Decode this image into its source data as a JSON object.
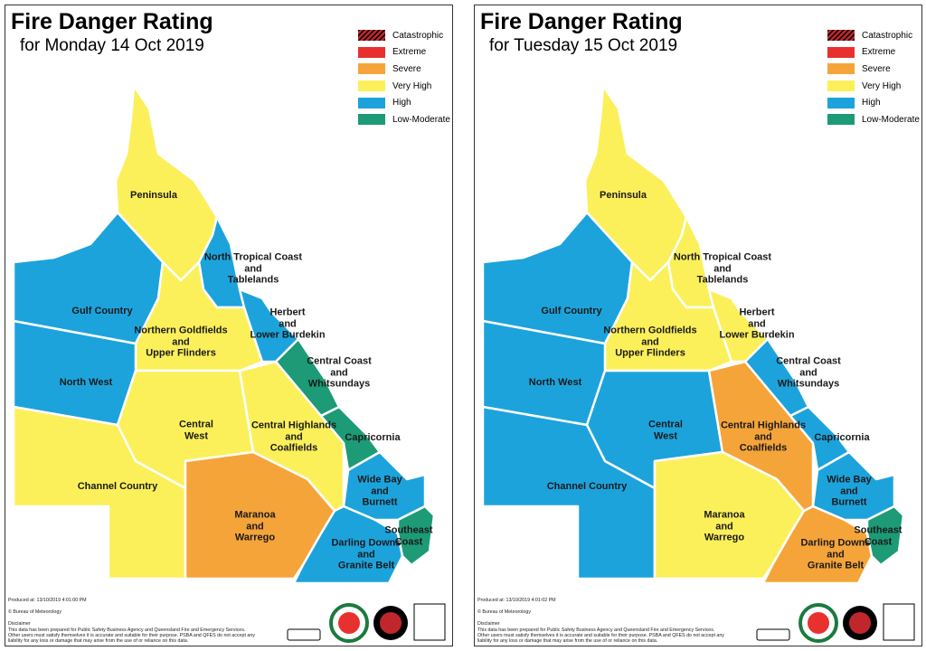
{
  "legend": [
    {
      "label": "Catastrophic",
      "color": "#c0272d"
    },
    {
      "label": "Extreme",
      "color": "#e8312f"
    },
    {
      "label": "Severe",
      "color": "#f5a43a"
    },
    {
      "label": "Very High",
      "color": "#fbf05a"
    },
    {
      "label": "High",
      "color": "#1ca3dc"
    },
    {
      "label": "Low-Moderate",
      "color": "#1c9b76"
    }
  ],
  "footer": {
    "copyright": "© Bureau of Meteorology",
    "disclaimer_title": "Disclaimer",
    "disclaimer": [
      "This data has been prepared for Public Safety Business Agency and Queensland Fire and Emergency Services.",
      "Other users must satisfy themselves it is accurate and suitable for their purpose. PSBA and QFES do not accept any",
      "liability for any loss or damage that may arise from the use of or reliance on this data."
    ]
  },
  "panels": [
    {
      "title": "Fire Danger Rating",
      "subtitle": "for Monday 14 Oct 2019",
      "produced": "Produced at: 13/10/2019 4:01:00 PM",
      "regions": [
        {
          "label": [
            "Peninsula"
          ],
          "rating": "Very High"
        },
        {
          "label": [
            "Gulf Country"
          ],
          "rating": "High"
        },
        {
          "label": [
            "North Tropical Coast",
            "and",
            "Tablelands"
          ],
          "rating": "High"
        },
        {
          "label": [
            "Northern Goldfields",
            "and",
            "Upper Flinders"
          ],
          "rating": "Very High"
        },
        {
          "label": [
            "Herbert",
            "and",
            "Lower Burdekin"
          ],
          "rating": "High"
        },
        {
          "label": [
            "North West"
          ],
          "rating": "High"
        },
        {
          "label": [
            "Central Coast",
            "and",
            "Whitsundays"
          ],
          "rating": "Low-Moderate"
        },
        {
          "label": [
            "Central",
            "West"
          ],
          "rating": "Very High"
        },
        {
          "label": [
            "Central Highlands",
            "and",
            "Coalfields"
          ],
          "rating": "Very High"
        },
        {
          "label": [
            "Capricornia"
          ],
          "rating": "Low-Moderate"
        },
        {
          "label": [
            "Channel Country"
          ],
          "rating": "Very High"
        },
        {
          "label": [
            "Maranoa",
            "and",
            "Warrego"
          ],
          "rating": "Severe"
        },
        {
          "label": [
            "Wide Bay",
            "and",
            "Burnett"
          ],
          "rating": "High"
        },
        {
          "label": [
            "Darling Downs",
            "and",
            "Granite Belt"
          ],
          "rating": "High"
        },
        {
          "label": [
            "Southeast",
            "Coast"
          ],
          "rating": "Low-Moderate"
        }
      ]
    },
    {
      "title": "Fire Danger Rating",
      "subtitle": "for Tuesday 15 Oct 2019",
      "produced": "Produced at: 13/10/2019 4:01:02 PM",
      "regions": [
        {
          "label": [
            "Peninsula"
          ],
          "rating": "Very High"
        },
        {
          "label": [
            "Gulf Country"
          ],
          "rating": "High"
        },
        {
          "label": [
            "North Tropical Coast",
            "and",
            "Tablelands"
          ],
          "rating": "Very High"
        },
        {
          "label": [
            "Northern Goldfields",
            "and",
            "Upper Flinders"
          ],
          "rating": "Very High"
        },
        {
          "label": [
            "Herbert",
            "and",
            "Lower Burdekin"
          ],
          "rating": "Very High"
        },
        {
          "label": [
            "North West"
          ],
          "rating": "High"
        },
        {
          "label": [
            "Central Coast",
            "and",
            "Whitsundays"
          ],
          "rating": "High"
        },
        {
          "label": [
            "Central",
            "West"
          ],
          "rating": "High"
        },
        {
          "label": [
            "Central Highlands",
            "and",
            "Coalfields"
          ],
          "rating": "Severe"
        },
        {
          "label": [
            "Capricornia"
          ],
          "rating": "High"
        },
        {
          "label": [
            "Channel Country"
          ],
          "rating": "High"
        },
        {
          "label": [
            "Maranoa",
            "and",
            "Warrego"
          ],
          "rating": "Very High"
        },
        {
          "label": [
            "Wide Bay",
            "and",
            "Burnett"
          ],
          "rating": "High"
        },
        {
          "label": [
            "Darling Downs",
            "and",
            "Granite Belt"
          ],
          "rating": "Severe"
        },
        {
          "label": [
            "Southeast",
            "Coast"
          ],
          "rating": "Low-Moderate"
        }
      ]
    }
  ]
}
